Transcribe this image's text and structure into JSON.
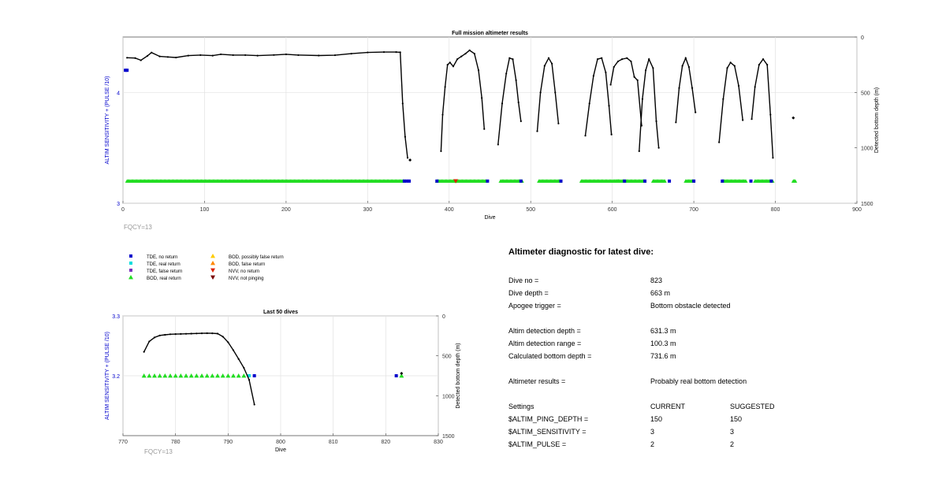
{
  "colors": {
    "tde_no_return": "#0000cc",
    "tde_real_return": "#00dddd",
    "tde_false_return": "#7b2fbe",
    "bod_real_return": "#22dd22",
    "bod_possibly_false": "#ffcc00",
    "bod_false_return": "#ff8800",
    "nvv_no_return": "#dd2200",
    "nvv_not_pinging": "#7a0000",
    "axis_left": "#0000cc",
    "depth_line": "#000000"
  },
  "chart_data": [
    {
      "type": "line",
      "title": "Full mission altimeter results",
      "xlabel": "Dive",
      "ylabel": "ALTIM SENSITIVITY + (PULSE /10)",
      "y2label": "Detected bottom depth (m)",
      "xlim": [
        0,
        900
      ],
      "ylim": [
        3,
        4.5
      ],
      "y2lim": [
        1500,
        0
      ],
      "x_ticks": [
        "0",
        "100",
        "200",
        "300",
        "400",
        "500",
        "600",
        "700",
        "800",
        "900"
      ],
      "y_ticks": [
        "3",
        "4"
      ],
      "y2_ticks": [
        "0",
        "500",
        "1000",
        "1500"
      ],
      "annotation": "FQCY=13",
      "grid": true,
      "series": [
        {
          "role": "detected-depth",
          "points": [
            [
              5,
              187
            ],
            [
              15,
              190
            ],
            [
              22,
              210
            ],
            [
              30,
              170
            ],
            [
              35,
              140
            ],
            [
              45,
              175
            ],
            [
              55,
              180
            ],
            [
              65,
              185
            ],
            [
              80,
              168
            ],
            [
              95,
              163
            ],
            [
              110,
              168
            ],
            [
              120,
              156
            ],
            [
              135,
              163
            ],
            [
              150,
              163
            ],
            [
              165,
              168
            ],
            [
              185,
              162
            ],
            [
              200,
              156
            ],
            [
              215,
              163
            ],
            [
              240,
              167
            ],
            [
              260,
              164
            ],
            [
              280,
              150
            ],
            [
              300,
              139
            ],
            [
              320,
              136
            ],
            [
              335,
              136
            ],
            [
              340,
              138
            ],
            [
              343,
              600
            ],
            [
              346,
              900
            ],
            [
              349,
              1090
            ]
          ],
          "marker_only": [
            [
              352,
              1110
            ]
          ]
        },
        {
          "role": "detected-depth",
          "points": [
            [
              390,
              1030
            ],
            [
              392,
              700
            ],
            [
              395,
              450
            ],
            [
              398,
              250
            ],
            [
              401,
              230
            ],
            [
              405,
              265
            ],
            [
              410,
              200
            ],
            [
              415,
              175
            ],
            [
              420,
              150
            ],
            [
              425,
              120
            ],
            [
              431,
              150
            ],
            [
              436,
              300
            ],
            [
              440,
              550
            ],
            [
              443,
              830
            ]
          ]
        },
        {
          "role": "detected-depth",
          "points": [
            [
              460,
              970
            ],
            [
              465,
              600
            ],
            [
              470,
              330
            ],
            [
              474,
              190
            ],
            [
              478,
              200
            ],
            [
              482,
              390
            ],
            [
              485,
              590
            ],
            [
              488,
              760
            ]
          ]
        },
        {
          "role": "detected-depth",
          "points": [
            [
              508,
              850
            ],
            [
              512,
              500
            ],
            [
              517,
              260
            ],
            [
              522,
              190
            ],
            [
              526,
              240
            ],
            [
              530,
              500
            ],
            [
              534,
              780
            ]
          ]
        },
        {
          "role": "detected-depth",
          "points": [
            [
              567,
              890
            ],
            [
              572,
              600
            ],
            [
              577,
              350
            ],
            [
              582,
              200
            ],
            [
              587,
              190
            ],
            [
              592,
              320
            ],
            [
              596,
              620
            ],
            [
              599,
              880
            ]
          ]
        },
        {
          "role": "detected-depth",
          "points": [
            [
              598,
              430
            ],
            [
              602,
              270
            ],
            [
              607,
              220
            ],
            [
              612,
              200
            ],
            [
              618,
              190
            ],
            [
              623,
              220
            ],
            [
              627,
              360
            ],
            [
              631,
              390
            ],
            [
              636,
              800
            ]
          ]
        },
        {
          "role": "detected-depth",
          "points": [
            [
              633,
              1030
            ],
            [
              637,
              560
            ],
            [
              641,
              300
            ],
            [
              645,
              200
            ],
            [
              650,
              280
            ],
            [
              654,
              760
            ],
            [
              657,
              1000
            ]
          ]
        },
        {
          "role": "detected-depth",
          "points": [
            [
              678,
              770
            ],
            [
              682,
              460
            ],
            [
              686,
              260
            ],
            [
              690,
              190
            ],
            [
              694,
              270
            ],
            [
              698,
              460
            ],
            [
              702,
              680
            ]
          ]
        },
        {
          "role": "detected-depth",
          "points": [
            [
              731,
              950
            ],
            [
              736,
              560
            ],
            [
              741,
              280
            ],
            [
              745,
              230
            ],
            [
              750,
              260
            ],
            [
              755,
              440
            ],
            [
              760,
              750
            ]
          ]
        },
        {
          "role": "detected-depth",
          "points": [
            [
              771,
              740
            ],
            [
              775,
              450
            ],
            [
              780,
              250
            ],
            [
              785,
              200
            ],
            [
              790,
              250
            ],
            [
              794,
              700
            ],
            [
              797,
              1090
            ]
          ]
        },
        {
          "role": "detected-depth",
          "points": [],
          "marker_only": [
            [
              822,
              730
            ]
          ]
        }
      ],
      "setting_markers": [
        {
          "kind": "tde_no_return",
          "x": 3,
          "y": 4.2
        },
        {
          "kind": "tde_no_return",
          "x": 5,
          "y": 4.2
        }
      ],
      "real_return_runs": [
        [
          5,
          345
        ],
        [
          385,
          445
        ],
        [
          463,
          490
        ],
        [
          510,
          537
        ],
        [
          562,
          608
        ],
        [
          605,
          640
        ],
        [
          650,
          665
        ],
        [
          690,
          700
        ],
        [
          735,
          765
        ],
        [
          775,
          797
        ],
        [
          822,
          825
        ]
      ],
      "no_return_markers": [
        345,
        348,
        351,
        385,
        447,
        488,
        537,
        615,
        640,
        670,
        700,
        735,
        770,
        795
      ],
      "nvv_no_return_x": 408
    },
    {
      "type": "line",
      "title": "Last 50 dives",
      "xlabel": "Dive",
      "ylabel": "ALTIM SENSITIVITY + (PULSE /10)",
      "y2label": "Detected bottom depth (m)",
      "xlim": [
        770,
        830
      ],
      "ylim": [
        3.1,
        3.3
      ],
      "y2lim": [
        1500,
        0
      ],
      "x_ticks": [
        "770",
        "780",
        "790",
        "800",
        "810",
        "820",
        "830"
      ],
      "y_ticks": [
        "3.2",
        "3.3"
      ],
      "y2_ticks": [
        "0",
        "500",
        "1000",
        "1500"
      ],
      "annotation": "FQCY=13",
      "grid": true,
      "series": [
        {
          "role": "detected-depth",
          "points": [
            [
              774,
              450
            ],
            [
              775,
              320
            ],
            [
              776,
              270
            ],
            [
              777,
              245
            ],
            [
              778,
              237
            ],
            [
              779,
              230
            ],
            [
              780,
              228
            ],
            [
              781,
              226
            ],
            [
              782,
              224
            ],
            [
              783,
              222
            ],
            [
              784,
              220
            ],
            [
              785,
              218
            ],
            [
              786,
              217
            ],
            [
              787,
              218
            ],
            [
              788,
              222
            ],
            [
              789,
              260
            ],
            [
              790,
              330
            ],
            [
              791,
              430
            ],
            [
              792,
              540
            ],
            [
              793,
              650
            ],
            [
              794,
              800
            ],
            [
              795,
              1110
            ]
          ]
        },
        {
          "role": "detected-depth",
          "points": [],
          "marker_only": [
            [
              823,
              720
            ]
          ]
        }
      ],
      "real_return_x": [
        774,
        775,
        776,
        777,
        778,
        779,
        780,
        781,
        782,
        783,
        784,
        785,
        786,
        787,
        788,
        789,
        790,
        791,
        792,
        793,
        823
      ],
      "real_return_tde_x": [
        794
      ],
      "no_return_x": [
        795,
        822
      ]
    }
  ],
  "legend": [
    {
      "label": "TDE, no return",
      "kind": "tde_no_return",
      "marker": "square"
    },
    {
      "label": "TDE, real return",
      "kind": "tde_real_return",
      "marker": "square"
    },
    {
      "label": "TDE, false return",
      "kind": "tde_false_return",
      "marker": "square"
    },
    {
      "label": "BOD, real return",
      "kind": "bod_real_return",
      "marker": "triangle-up"
    },
    {
      "label": "BOD, possibly false return",
      "kind": "bod_possibly_false",
      "marker": "triangle-up"
    },
    {
      "label": "BOD, false return",
      "kind": "bod_false_return",
      "marker": "triangle-up"
    },
    {
      "label": "NVV, no return",
      "kind": "nvv_no_return",
      "marker": "triangle-down"
    },
    {
      "label": "NVV, not pinging",
      "kind": "nvv_not_pinging",
      "marker": "triangle-down"
    }
  ],
  "diagnostic": {
    "title": "Altimeter diagnostic for latest dive:",
    "dive_no_label": "Dive no =",
    "dive_no": "823",
    "dive_depth_label": "Dive depth =",
    "dive_depth": "663 m",
    "apogee_label": "Apogee trigger =",
    "apogee": "Bottom obstacle detected",
    "detect_depth_label": "Altim detection depth =",
    "detect_depth": "631.3 m",
    "detect_range_label": "Altim detection range =",
    "detect_range": "100.3 m",
    "calc_depth_label": "Calculated bottom depth =",
    "calc_depth": "731.6 m",
    "results_label": "Altimeter results =",
    "results": "Probably real bottom detection",
    "settings_label": "Settings",
    "current_label": "CURRENT",
    "suggested_label": "SUGGESTED",
    "ping_label": "$ALTIM_PING_DEPTH =",
    "ping_current": "150",
    "ping_suggested": "150",
    "sens_label": "$ALTIM_SENSITIVITY =",
    "sens_current": "3",
    "sens_suggested": "3",
    "pulse_label": "$ALTIM_PULSE =",
    "pulse_current": "2",
    "pulse_suggested": "2"
  }
}
